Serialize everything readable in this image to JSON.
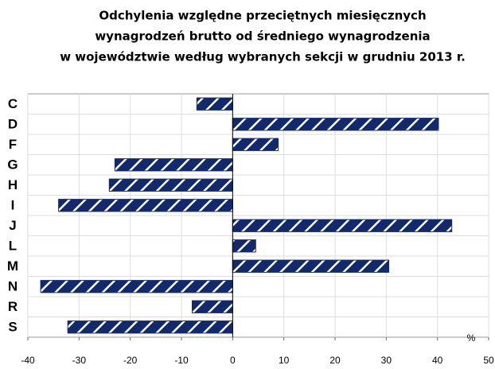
{
  "chart_data": {
    "type": "barh",
    "title": [
      "Odchylenia względne przeciętnych miesięcznych",
      "wynagrodzeń brutto od średniego wynagrodzenia",
      "w województwie według wybranych sekcji w grudniu 2013 r."
    ],
    "categories": [
      "C",
      "D",
      "F",
      "G",
      "H",
      "I",
      "J",
      "L",
      "M",
      "N",
      "R",
      "S"
    ],
    "values": [
      -7,
      40.2,
      8.9,
      -23,
      -24.1,
      -34,
      42.8,
      4.5,
      30.5,
      -37.5,
      -7.9,
      -32.2
    ],
    "color": "#12296b",
    "xlabel": "%",
    "xlim": [
      -40,
      50
    ],
    "xticks": [
      -40,
      -30,
      -20,
      -10,
      0,
      10,
      20,
      30,
      40,
      50
    ],
    "grid": true
  }
}
